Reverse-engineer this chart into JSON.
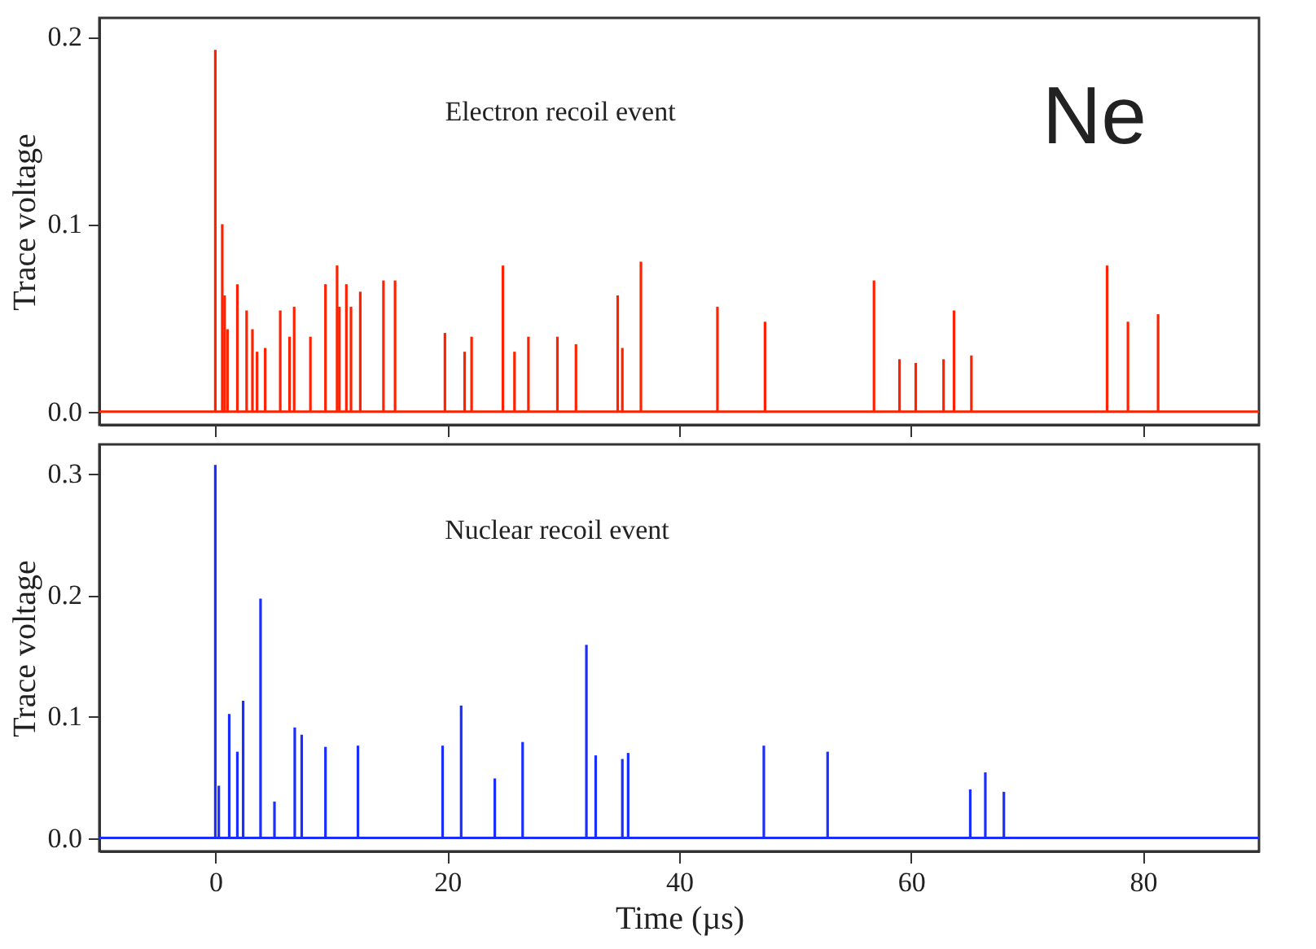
{
  "chart_data": [
    {
      "type": "bar",
      "ylabel": "Trace voltage",
      "annotations": [
        "Electron recoil event",
        "Ne"
      ],
      "color": "#ff2200",
      "tick_labels": "y",
      "x": [
        0,
        0.6,
        0.8,
        1.05,
        1.9,
        2.7,
        3.2,
        3.6,
        4.3,
        5.6,
        6.4,
        6.8,
        8.2,
        9.5,
        10.5,
        10.7,
        11.3,
        11.7,
        12.5,
        14.5,
        15.5,
        19.8,
        21.5,
        22.1,
        24.8,
        25.8,
        27.0,
        29.5,
        31.1,
        34.7,
        35.1,
        36.7,
        43.3,
        47.4,
        56.8,
        59.0,
        60.4,
        62.8,
        63.7,
        65.2,
        76.9,
        78.7,
        81.3
      ],
      "values": [
        0.193,
        0.1,
        0.062,
        0.044,
        0.068,
        0.054,
        0.044,
        0.032,
        0.034,
        0.054,
        0.04,
        0.056,
        0.04,
        0.068,
        0.078,
        0.056,
        0.068,
        0.056,
        0.064,
        0.07,
        0.07,
        0.042,
        0.032,
        0.04,
        0.078,
        0.032,
        0.04,
        0.04,
        0.036,
        0.062,
        0.034,
        0.08,
        0.056,
        0.048,
        0.07,
        0.028,
        0.026,
        0.028,
        0.054,
        0.03,
        0.078,
        0.048,
        0.052
      ],
      "xlim": [
        -10,
        90
      ],
      "xticks": [
        0,
        20,
        40,
        60,
        80
      ],
      "ylim": [
        -0.007,
        0.21
      ],
      "yticks": [
        {
          "value": 0,
          "label": "0.0"
        },
        {
          "value": 0.1,
          "label": "0.1"
        },
        {
          "value": 0.2,
          "label": "0.2"
        }
      ],
      "ref_lines": [
        {
          "axis": "y",
          "value": 0,
          "color": "#ff2200"
        }
      ]
    },
    {
      "type": "bar",
      "ylabel": "Trace voltage",
      "xlabel": "Time (µs)",
      "annotations": [
        "Nuclear recoil event"
      ],
      "color": "#1a2eff",
      "x": [
        0,
        0.3,
        1.2,
        1.9,
        2.4,
        3.9,
        5.1,
        6.85,
        7.45,
        9.5,
        12.3,
        19.6,
        21.2,
        24.1,
        26.5,
        32.0,
        32.8,
        35.1,
        35.6,
        47.3,
        52.8,
        65.1,
        66.4,
        68.0
      ],
      "values": [
        0.307,
        0.043,
        0.102,
        0.071,
        0.113,
        0.197,
        0.03,
        0.091,
        0.085,
        0.075,
        0.076,
        0.076,
        0.109,
        0.049,
        0.079,
        0.159,
        0.068,
        0.065,
        0.07,
        0.076,
        0.071,
        0.04,
        0.054,
        0.038
      ],
      "xlim": [
        -10,
        90
      ],
      "xticks": [
        0,
        20,
        40,
        60,
        80
      ],
      "ylim": [
        -0.011,
        0.324
      ],
      "yticks": [
        {
          "value": 0,
          "label": "0.0"
        },
        {
          "value": 0.1,
          "label": "0.1"
        },
        {
          "value": 0.2,
          "label": "0.2"
        },
        {
          "value": 0.3,
          "label": "0.3"
        }
      ],
      "ref_lines": [
        {
          "axis": "y",
          "value": 0,
          "color": "#1a2eff"
        }
      ]
    }
  ]
}
